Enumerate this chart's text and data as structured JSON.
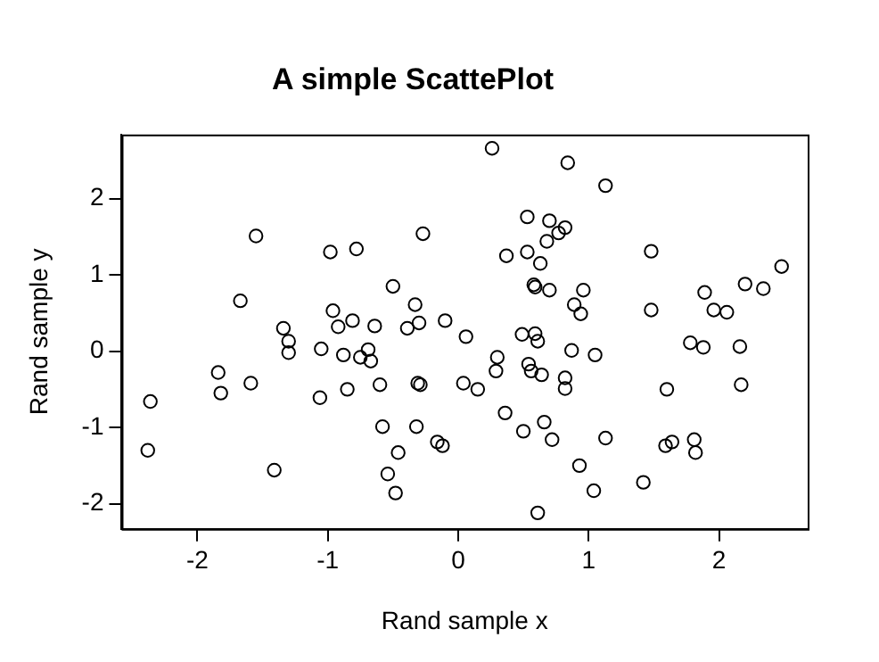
{
  "chart_data": {
    "type": "scatter",
    "title": "A simple ScattePlot",
    "xlabel": "Rand sample x",
    "ylabel": "Rand sample y",
    "xlim": [
      -2.58,
      2.68
    ],
    "ylim": [
      -2.33,
      2.84
    ],
    "xticks": [
      -2,
      -1,
      0,
      1,
      2
    ],
    "yticks": [
      -2,
      -1,
      0,
      1,
      2
    ],
    "grid": false,
    "legend": false,
    "marker": "circle",
    "series": [
      {
        "color": "#000000",
        "x": [
          -2.36,
          -2.38,
          -1.55,
          -1.67,
          -1.84,
          -1.82,
          -1.59,
          -1.41,
          -1.34,
          -1.3,
          -1.3,
          -0.98,
          -0.96,
          -0.92,
          -1.05,
          -1.06,
          0.26,
          0.84,
          -0.78,
          -0.27,
          0.53,
          0.7,
          0.82,
          0.77,
          0.68,
          0.37,
          0.53,
          0.63,
          -0.5,
          0.58,
          0.59,
          0.7,
          0.96,
          -0.81,
          -0.64,
          -0.33,
          -0.3,
          -0.39,
          -0.1,
          0.06,
          0.89,
          0.94,
          0.49,
          0.59,
          0.61,
          0.87,
          -0.88,
          -0.75,
          -0.69,
          -0.67,
          -0.85,
          -0.6,
          -0.31,
          -0.29,
          0.04,
          0.15,
          0.3,
          0.29,
          0.54,
          0.56,
          0.64,
          0.82,
          0.82,
          0.36,
          0.5,
          0.66,
          0.72,
          0.93,
          -0.58,
          -0.32,
          -0.16,
          -0.12,
          -0.46,
          -0.54,
          -0.48,
          0.61,
          1.13,
          1.48,
          2.48,
          1.89,
          2.2,
          2.34,
          1.96,
          2.06,
          1.48,
          1.05,
          1.78,
          1.88,
          2.16,
          1.6,
          2.17,
          1.13,
          1.59,
          1.64,
          1.81,
          1.82,
          1.04,
          1.42
        ],
        "values": [
          -0.66,
          -1.3,
          1.51,
          0.66,
          -0.28,
          -0.55,
          -0.42,
          -1.56,
          0.3,
          0.13,
          -0.02,
          1.3,
          0.53,
          0.32,
          0.03,
          -0.61,
          2.66,
          2.47,
          1.34,
          1.54,
          1.76,
          1.71,
          1.62,
          1.55,
          1.44,
          1.25,
          1.3,
          1.15,
          0.85,
          0.87,
          0.84,
          0.8,
          0.8,
          0.4,
          0.33,
          0.61,
          0.37,
          0.3,
          0.4,
          0.19,
          0.61,
          0.49,
          0.22,
          0.23,
          0.13,
          0.01,
          -0.05,
          -0.08,
          0.02,
          -0.13,
          -0.5,
          -0.44,
          -0.42,
          -0.44,
          -0.42,
          -0.5,
          -0.08,
          -0.26,
          -0.17,
          -0.26,
          -0.31,
          -0.35,
          -0.49,
          -0.81,
          -1.05,
          -0.93,
          -1.16,
          -1.5,
          -0.99,
          -0.99,
          -1.19,
          -1.24,
          -1.33,
          -1.61,
          -1.86,
          -2.12,
          2.17,
          1.31,
          1.11,
          0.77,
          0.88,
          0.82,
          0.54,
          0.51,
          0.54,
          -0.05,
          0.11,
          0.05,
          0.06,
          -0.5,
          -0.44,
          -1.14,
          -1.24,
          -1.19,
          -1.16,
          -1.33,
          -1.83,
          -1.72
        ]
      }
    ]
  }
}
